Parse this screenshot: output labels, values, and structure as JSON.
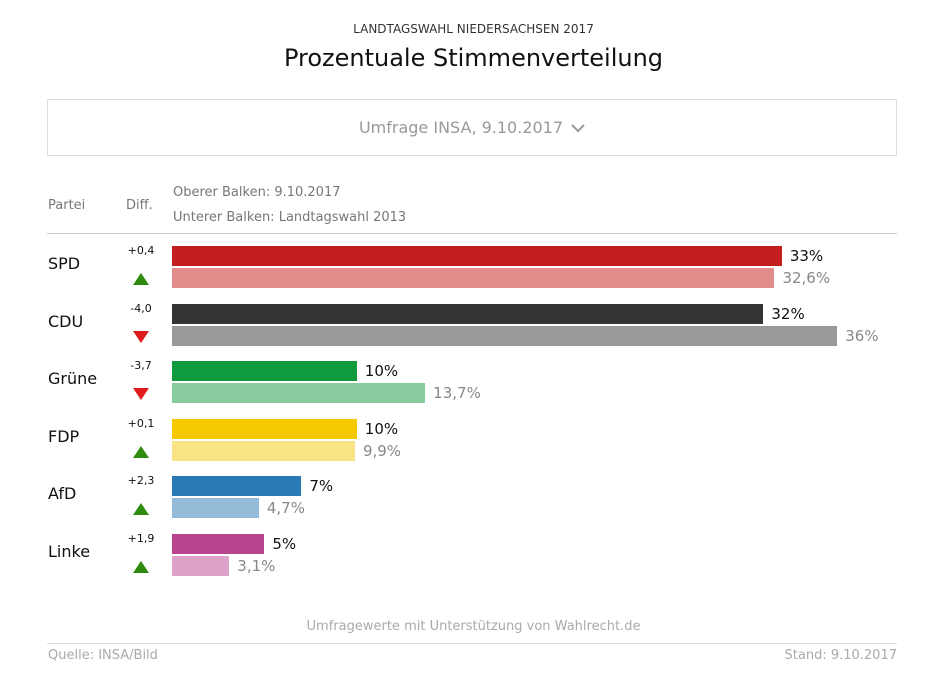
{
  "header": {
    "kicker": "LANDTAGSWAHL NIEDERSACHSEN 2017",
    "title": "Prozentuale Stimmenverteilung"
  },
  "selector": {
    "value": "Umfrage INSA, 9.10.2017",
    "icon": "chevron-down-icon"
  },
  "columns": {
    "party": "Partei",
    "diff": "Diff.",
    "legend_top": "Oberer Balken: 9.10.2017",
    "legend_bottom": "Unterer Balken: Landtagswahl 2013"
  },
  "chart_data": {
    "type": "bar",
    "orientation": "horizontal",
    "categories": [
      "SPD",
      "CDU",
      "Grüne",
      "FDP",
      "AfD",
      "Linke"
    ],
    "series": [
      {
        "name": "Oberer Balken: 9.10.2017",
        "values": [
          33,
          32,
          10,
          10,
          7,
          5
        ],
        "labels": [
          "33%",
          "32%",
          "10%",
          "10%",
          "7%",
          "5%"
        ]
      },
      {
        "name": "Unterer Balken: Landtagswahl 2013",
        "values": [
          32.6,
          36,
          13.7,
          9.9,
          4.7,
          3.1
        ],
        "labels": [
          "32,6%",
          "36%",
          "13,7%",
          "9,9%",
          "4,7%",
          "3,1%"
        ]
      }
    ],
    "diffs": [
      "+0,4",
      "-4,0",
      "-3,7",
      "+0,1",
      "+2,3",
      "+1,9"
    ],
    "diff_direction": [
      "up",
      "down",
      "down",
      "up",
      "up",
      "up"
    ],
    "colors_top": [
      "#c41e1e",
      "#333333",
      "#0f9a3e",
      "#f5c800",
      "#2a7ab5",
      "#b9458f"
    ],
    "colors_bottom": [
      "#e28c8c",
      "#999999",
      "#88cc9e",
      "#fae384",
      "#94bcd9",
      "#dca2c8"
    ],
    "arrow_colors": {
      "up": "#2e8b10",
      "down": "#e01b1b"
    },
    "xlim": [
      0,
      39
    ]
  },
  "footer": {
    "credit": "Umfragewerte mit Unterstützung von Wahlrecht.de",
    "source": "Quelle: INSA/Bild",
    "stand": "Stand: 9.10.2017"
  }
}
